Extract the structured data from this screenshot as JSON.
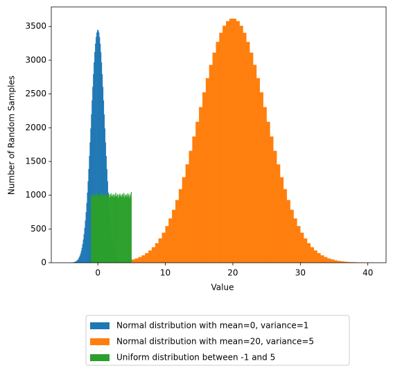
{
  "chart_data": {
    "type": "histogram",
    "xlabel": "Value",
    "ylabel": "Number of Random Samples",
    "xlim": [
      -6.9,
      42.7
    ],
    "ylim": [
      0,
      3790
    ],
    "xticks": [
      0,
      10,
      20,
      30,
      40
    ],
    "yticks": [
      0,
      500,
      1000,
      1500,
      2000,
      2500,
      3000,
      3500
    ],
    "grid": false,
    "legend": "below",
    "series": [
      {
        "name": "Normal distribution with mean=0, variance=1",
        "color": "#1f77b4",
        "bins": [
          -4,
          -3.9,
          -3.8,
          -3.7,
          -3.6,
          -3.5,
          -3.4,
          -3.3,
          -3.2,
          -3.1,
          -3,
          -2.9,
          -2.8,
          -2.7,
          -2.6,
          -2.5,
          -2.4,
          -2.3,
          -2.2,
          -2.1,
          -2,
          -1.9,
          -1.8,
          -1.7,
          -1.6,
          -1.5,
          -1.4,
          -1.3,
          -1.2,
          -1.1,
          -1,
          -0.9,
          -0.8,
          -0.7,
          -0.6,
          -0.5,
          -0.4,
          -0.3,
          -0.2,
          -0.1,
          0,
          0.1,
          0.2,
          0.3,
          0.4,
          0.5,
          0.6,
          0.7,
          0.8,
          0.9,
          1,
          1.1,
          1.2,
          1.3,
          1.4,
          1.5,
          1.6,
          1.7,
          1.8,
          1.9,
          2,
          2.1,
          2.2,
          2.3,
          2.4,
          2.5,
          2.6,
          2.7,
          2.8,
          2.9,
          3,
          3.1,
          3.2,
          3.3,
          3.4,
          3.5,
          3.6,
          3.7,
          3.8,
          3.9,
          4
        ],
        "values": [
          1,
          2,
          3,
          4,
          6,
          9,
          13,
          18,
          24,
          33,
          44,
          59,
          79,
          103,
          134,
          172,
          218,
          274,
          342,
          422,
          515,
          623,
          746,
          884,
          1038,
          1206,
          1387,
          1580,
          1781,
          1988,
          2197,
          2404,
          2604,
          2793,
          2966,
          3118,
          3245,
          3344,
          3411,
          3446,
          3446,
          3411,
          3344,
          3245,
          3118,
          2966,
          2793,
          2604,
          2404,
          2197,
          1988,
          1781,
          1580,
          1387,
          1206,
          1038,
          884,
          746,
          623,
          515,
          422,
          342,
          274,
          218,
          172,
          134,
          103,
          79,
          59,
          44,
          33,
          24,
          18,
          13,
          9,
          6,
          4,
          3,
          2,
          1
        ]
      },
      {
        "name": "Normal distribution with mean=20, variance=5",
        "color": "#ff7f0e",
        "bins": [
          0,
          0.5,
          1,
          1.5,
          2,
          2.5,
          3,
          3.5,
          4,
          4.5,
          5,
          5.5,
          6,
          6.5,
          7,
          7.5,
          8,
          8.5,
          9,
          9.5,
          10,
          10.5,
          11,
          11.5,
          12,
          12.5,
          13,
          13.5,
          14,
          14.5,
          15,
          15.5,
          16,
          16.5,
          17,
          17.5,
          18,
          18.5,
          19,
          19.5,
          20,
          20.5,
          21,
          21.5,
          22,
          22.5,
          23,
          23.5,
          24,
          24.5,
          25,
          25.5,
          26,
          26.5,
          27,
          27.5,
          28,
          28.5,
          29,
          29.5,
          30,
          30.5,
          31,
          31.5,
          32,
          32.5,
          33,
          33.5,
          34,
          34.5,
          35,
          35.5,
          36,
          36.5,
          37,
          37.5,
          38,
          38.5,
          39,
          39.5,
          40,
          40.5,
          41,
          41.5,
          42
        ],
        "values": [
          1,
          2,
          3,
          5,
          7,
          9,
          13,
          18,
          25,
          35,
          47,
          62,
          83,
          108,
          140,
          180,
          229,
          288,
          359,
          443,
          541,
          654,
          783,
          928,
          1089,
          1265,
          1455,
          1657,
          1869,
          2086,
          2305,
          2523,
          2733,
          2931,
          3112,
          3271,
          3405,
          3509,
          3579,
          3615,
          3615,
          3579,
          3509,
          3405,
          3271,
          3112,
          2931,
          2733,
          2523,
          2305,
          2086,
          1869,
          1657,
          1455,
          1265,
          1089,
          928,
          783,
          654,
          541,
          443,
          359,
          288,
          229,
          180,
          140,
          108,
          83,
          62,
          47,
          35,
          25,
          18,
          13,
          9,
          7,
          5,
          3,
          2,
          1,
          1,
          1,
          0,
          0
        ]
      },
      {
        "name": "Uniform distribution between -1 and 5",
        "color": "#2ca02c",
        "bins": [
          -1,
          -0.9,
          -0.8,
          -0.7,
          -0.6,
          -0.5,
          -0.4,
          -0.3,
          -0.2,
          -0.1,
          0,
          0.1,
          0.2,
          0.3,
          0.4,
          0.5,
          0.6,
          0.7,
          0.8,
          0.9,
          1,
          1.1,
          1.2,
          1.3,
          1.4,
          1.5,
          1.6,
          1.7,
          1.8,
          1.9,
          2,
          2.1,
          2.2,
          2.3,
          2.4,
          2.5,
          2.6,
          2.7,
          2.8,
          2.9,
          3,
          3.1,
          3.2,
          3.3,
          3.4,
          3.5,
          3.6,
          3.7,
          3.8,
          3.9,
          4,
          4.1,
          4.2,
          4.3,
          4.4,
          4.5,
          4.6,
          4.7,
          4.8,
          4.9,
          5
        ],
        "values": [
          985,
          1010,
          968,
          1002,
          1021,
          990,
          975,
          1008,
          1030,
          962,
          996,
          1015,
          987,
          1003,
          972,
          1019,
          1040,
          981,
          994,
          1006,
          958,
          1012,
          989,
          1025,
          977,
          999,
          1013,
          966,
          1004,
          1028,
          983,
          995,
          1017,
          970,
          1009,
          991,
          1036,
          979,
          1001,
          1014,
          963,
          997,
          1022,
          986,
          1007,
          974,
          1018,
          992,
          1032,
          969,
          1005,
          988,
          1011,
          976,
          1026,
          998,
          960,
          1015,
          984,
          1045
        ]
      }
    ]
  }
}
